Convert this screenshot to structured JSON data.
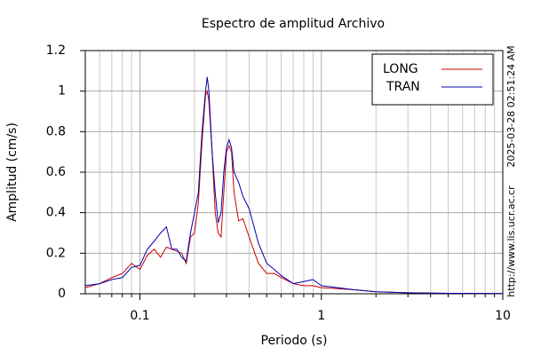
{
  "chart_data": {
    "type": "line",
    "title": "Espectro de amplitud Archivo",
    "xlabel": "Periodo (s)",
    "ylabel": "Amplitud (cm/s)",
    "side_texts": [
      "2025-03-28 02:51:24 AM",
      "http://www.lis.ucr.ac.cr"
    ],
    "xscale": "log",
    "grid": true,
    "legend": "upper right",
    "xlim": [
      0.05,
      10
    ],
    "xticks": [
      0.1,
      1,
      10
    ],
    "xminorticks": [
      0.06,
      0.07,
      0.08,
      0.09,
      0.2,
      0.3,
      0.4,
      0.5,
      0.6,
      0.7,
      0.8,
      0.9,
      2,
      3,
      4,
      5,
      6,
      7,
      8,
      9
    ],
    "ylim": [
      0,
      1.2
    ],
    "yticks": [
      0,
      0.2,
      0.4,
      0.6,
      0.8,
      1,
      1.2
    ],
    "x": [
      0.05,
      0.06,
      0.07,
      0.08,
      0.09,
      0.1,
      0.11,
      0.12,
      0.13,
      0.14,
      0.15,
      0.16,
      0.17,
      0.18,
      0.19,
      0.2,
      0.21,
      0.22,
      0.23,
      0.235,
      0.24,
      0.25,
      0.26,
      0.27,
      0.28,
      0.29,
      0.3,
      0.31,
      0.32,
      0.33,
      0.35,
      0.37,
      0.4,
      0.45,
      0.5,
      0.55,
      0.6,
      0.7,
      0.8,
      0.9,
      1,
      1.5,
      2,
      3,
      5,
      10
    ],
    "series": [
      {
        "name": "LONG",
        "color": "#cc0000",
        "values": [
          0.03,
          0.05,
          0.08,
          0.1,
          0.15,
          0.12,
          0.19,
          0.22,
          0.18,
          0.23,
          0.22,
          0.21,
          0.2,
          0.15,
          0.28,
          0.3,
          0.45,
          0.75,
          0.98,
          1.0,
          0.95,
          0.7,
          0.4,
          0.3,
          0.28,
          0.5,
          0.7,
          0.73,
          0.7,
          0.5,
          0.36,
          0.37,
          0.28,
          0.15,
          0.1,
          0.1,
          0.08,
          0.05,
          0.04,
          0.04,
          0.03,
          0.02,
          0.01,
          0.005,
          0.002,
          0.001
        ]
      },
      {
        "name": "TRAN",
        "color": "#0000aa",
        "values": [
          0.04,
          0.05,
          0.07,
          0.08,
          0.13,
          0.14,
          0.22,
          0.26,
          0.3,
          0.33,
          0.22,
          0.22,
          0.18,
          0.16,
          0.3,
          0.4,
          0.5,
          0.8,
          1.0,
          1.07,
          1.0,
          0.7,
          0.5,
          0.35,
          0.4,
          0.6,
          0.72,
          0.76,
          0.72,
          0.6,
          0.55,
          0.48,
          0.42,
          0.25,
          0.15,
          0.12,
          0.09,
          0.05,
          0.06,
          0.07,
          0.04,
          0.02,
          0.01,
          0.005,
          0.002,
          0.001
        ]
      }
    ]
  }
}
